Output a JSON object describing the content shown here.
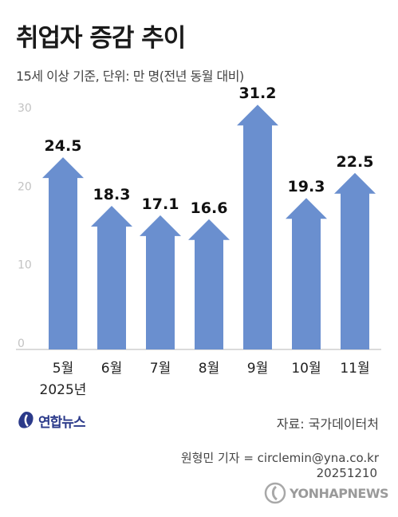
{
  "header": {
    "title": "취업자 증감 추이",
    "subtitle": "15세 이상 기준, 단위: 만 명(전년 동월 대비)"
  },
  "chart_data": {
    "type": "bar",
    "categories": [
      "5월",
      "6월",
      "7월",
      "8월",
      "9월",
      "10월",
      "11월"
    ],
    "values": [
      24.5,
      18.3,
      17.1,
      16.6,
      31.2,
      19.3,
      22.5
    ],
    "value_labels": [
      "24.5",
      "18.3",
      "17.1",
      "16.6",
      "31.2",
      "19.3",
      "22.5"
    ],
    "year_label": "2025년",
    "yticks": [
      "0",
      "10",
      "20",
      "30"
    ],
    "ylim": [
      0,
      30
    ],
    "grid": false,
    "bar_style": "arrow",
    "bar_color": "#6a8fcf"
  },
  "footer": {
    "logo_text": "연합뉴스",
    "source": "자료: 국가데이터처",
    "reporter": "원형민 기자 = circlemin@yna.co.kr",
    "date": "20251210",
    "watermark": "YONHAPNEWS"
  },
  "colors": {
    "bar": "#6a8fcf",
    "logo": "#2b3a8a",
    "axis": "#cfcfcf"
  }
}
